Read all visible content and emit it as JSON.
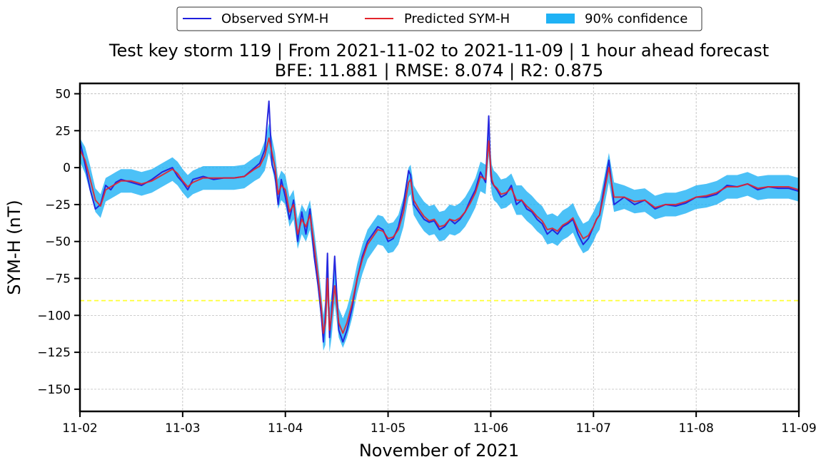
{
  "chart_data": {
    "type": "line",
    "title": "Test key storm 119 | From 2021-11-02 to 2021-11-09 | 1 hour ahead forecast",
    "subtitle": "BFE: 11.881 | RMSE: 8.074 | R2: 0.875",
    "xlabel": "November of 2021",
    "ylabel": "SYM-H (nT)",
    "xlim": [
      0,
      7
    ],
    "ylim": [
      -165,
      57
    ],
    "x_ticks": [
      0,
      1,
      2,
      3,
      4,
      5,
      6,
      7
    ],
    "x_tick_labels": [
      "11-02",
      "11-03",
      "11-04",
      "11-05",
      "11-06",
      "11-07",
      "11-08",
      "11-09"
    ],
    "y_ticks": [
      50,
      25,
      0,
      -25,
      -50,
      -75,
      -100,
      -125,
      -150
    ],
    "y_tick_labels": [
      "50",
      "25",
      "0",
      "−25",
      "−50",
      "−75",
      "−100",
      "−125",
      "−150"
    ],
    "grid": true,
    "threshold": {
      "value": -90,
      "color": "#ffff33",
      "style": "dashed"
    },
    "legend": {
      "position": "top-center",
      "entries": [
        {
          "label": "Observed SYM-H",
          "color": "#1f1fdd",
          "kind": "line"
        },
        {
          "label": "Predicted SYM-H",
          "color": "#e3242b",
          "kind": "line"
        },
        {
          "label": "90% confidence",
          "color": "#1fb2f5",
          "kind": "patch"
        }
      ]
    },
    "series": [
      {
        "name": "Observed SYM-H",
        "color": "#1f1fdd",
        "x": [
          0,
          0.05,
          0.1,
          0.15,
          0.2,
          0.25,
          0.3,
          0.35,
          0.4,
          0.5,
          0.6,
          0.7,
          0.8,
          0.9,
          0.95,
          1.0,
          1.05,
          1.1,
          1.2,
          1.3,
          1.4,
          1.5,
          1.6,
          1.7,
          1.75,
          1.8,
          1.84,
          1.87,
          1.9,
          1.93,
          1.96,
          2.0,
          2.04,
          2.08,
          2.12,
          2.16,
          2.2,
          2.24,
          2.28,
          2.32,
          2.35,
          2.37,
          2.39,
          2.41,
          2.43,
          2.45,
          2.48,
          2.52,
          2.56,
          2.6,
          2.65,
          2.7,
          2.75,
          2.8,
          2.85,
          2.9,
          2.95,
          3.0,
          3.05,
          3.1,
          3.15,
          3.2,
          3.22,
          3.25,
          3.3,
          3.35,
          3.4,
          3.45,
          3.5,
          3.55,
          3.6,
          3.65,
          3.7,
          3.75,
          3.8,
          3.85,
          3.9,
          3.95,
          3.98,
          4.0,
          4.01,
          4.03,
          4.06,
          4.1,
          4.15,
          4.2,
          4.25,
          4.3,
          4.35,
          4.4,
          4.45,
          4.5,
          4.55,
          4.6,
          4.65,
          4.7,
          4.75,
          4.8,
          4.85,
          4.9,
          4.95,
          5.0,
          5.03,
          5.06,
          5.1,
          5.15,
          5.2,
          5.3,
          5.4,
          5.5,
          5.6,
          5.7,
          5.8,
          5.9,
          6.0,
          6.1,
          6.2,
          6.3,
          6.4,
          6.5,
          6.6,
          6.7,
          6.8,
          6.9,
          7.0
        ],
        "values": [
          18,
          2,
          -15,
          -28,
          -25,
          -12,
          -15,
          -10,
          -8,
          -10,
          -12,
          -8,
          -3,
          0,
          -6,
          -10,
          -15,
          -8,
          -6,
          -8,
          -7,
          -7,
          -6,
          0,
          3,
          12,
          45,
          2,
          -5,
          -25,
          -8,
          -20,
          -35,
          -22,
          -50,
          -30,
          -45,
          -28,
          -60,
          -80,
          -100,
          -118,
          -100,
          -58,
          -115,
          -98,
          -60,
          -110,
          -118,
          -110,
          -95,
          -75,
          -60,
          -50,
          -45,
          -40,
          -42,
          -50,
          -48,
          -40,
          -25,
          -2,
          -5,
          -25,
          -30,
          -35,
          -37,
          -36,
          -42,
          -40,
          -35,
          -38,
          -35,
          -30,
          -22,
          -15,
          -3,
          -10,
          35,
          -5,
          -10,
          -12,
          -15,
          -20,
          -18,
          -12,
          -25,
          -22,
          -28,
          -30,
          -35,
          -38,
          -45,
          -42,
          -45,
          -40,
          -38,
          -35,
          -45,
          -52,
          -48,
          -40,
          -35,
          -32,
          -15,
          5,
          -25,
          -20,
          -25,
          -22,
          -28,
          -25,
          -26,
          -24,
          -20,
          -20,
          -18,
          -12,
          -13,
          -11,
          -15,
          -13,
          -14,
          -14,
          -16
        ]
      },
      {
        "name": "Predicted SYM-H",
        "color": "#e3242b",
        "x": [
          0,
          0.05,
          0.1,
          0.15,
          0.2,
          0.25,
          0.3,
          0.35,
          0.4,
          0.5,
          0.6,
          0.7,
          0.8,
          0.9,
          0.95,
          1.0,
          1.05,
          1.1,
          1.2,
          1.3,
          1.4,
          1.5,
          1.6,
          1.7,
          1.75,
          1.8,
          1.84,
          1.87,
          1.9,
          1.93,
          1.96,
          2.0,
          2.04,
          2.08,
          2.12,
          2.16,
          2.2,
          2.24,
          2.28,
          2.32,
          2.35,
          2.37,
          2.39,
          2.41,
          2.43,
          2.45,
          2.48,
          2.52,
          2.56,
          2.6,
          2.65,
          2.7,
          2.75,
          2.8,
          2.85,
          2.9,
          2.95,
          3.0,
          3.05,
          3.1,
          3.15,
          3.2,
          3.22,
          3.25,
          3.3,
          3.35,
          3.4,
          3.45,
          3.5,
          3.55,
          3.6,
          3.65,
          3.7,
          3.75,
          3.8,
          3.85,
          3.9,
          3.95,
          3.98,
          4.0,
          4.01,
          4.03,
          4.06,
          4.1,
          4.15,
          4.2,
          4.25,
          4.3,
          4.35,
          4.4,
          4.45,
          4.5,
          4.55,
          4.6,
          4.65,
          4.7,
          4.75,
          4.8,
          4.85,
          4.9,
          4.95,
          5.0,
          5.03,
          5.06,
          5.1,
          5.15,
          5.2,
          5.3,
          5.4,
          5.5,
          5.6,
          5.7,
          5.8,
          5.9,
          6.0,
          6.1,
          6.2,
          6.3,
          6.4,
          6.5,
          6.6,
          6.7,
          6.8,
          6.9,
          7.0
        ],
        "values": [
          12,
          5,
          -8,
          -22,
          -26,
          -15,
          -13,
          -11,
          -9,
          -9,
          -11,
          -9,
          -5,
          -1,
          -4,
          -9,
          -13,
          -10,
          -7,
          -7,
          -7,
          -7,
          -6,
          -1,
          1,
          8,
          20,
          10,
          0,
          -18,
          -12,
          -15,
          -30,
          -25,
          -45,
          -35,
          -40,
          -32,
          -52,
          -75,
          -95,
          -112,
          -105,
          -75,
          -110,
          -100,
          -80,
          -105,
          -112,
          -105,
          -92,
          -75,
          -62,
          -52,
          -47,
          -42,
          -43,
          -48,
          -47,
          -42,
          -30,
          -10,
          -8,
          -22,
          -28,
          -33,
          -36,
          -35,
          -40,
          -39,
          -35,
          -36,
          -34,
          -30,
          -24,
          -17,
          -6,
          -8,
          18,
          0,
          -8,
          -12,
          -14,
          -18,
          -17,
          -14,
          -22,
          -22,
          -26,
          -29,
          -33,
          -36,
          -42,
          -41,
          -43,
          -39,
          -37,
          -34,
          -42,
          -48,
          -46,
          -40,
          -35,
          -32,
          -18,
          0,
          -20,
          -20,
          -23,
          -22,
          -27,
          -25,
          -25,
          -23,
          -20,
          -19,
          -17,
          -13,
          -13,
          -11,
          -14,
          -13,
          -13,
          -13,
          -15
        ]
      },
      {
        "name": "90% confidence",
        "color": "#1fb2f5",
        "x": [
          0,
          0.05,
          0.1,
          0.15,
          0.2,
          0.25,
          0.3,
          0.35,
          0.4,
          0.5,
          0.6,
          0.7,
          0.8,
          0.9,
          0.95,
          1.0,
          1.05,
          1.1,
          1.2,
          1.3,
          1.4,
          1.5,
          1.6,
          1.7,
          1.75,
          1.8,
          1.84,
          1.87,
          1.9,
          1.93,
          1.96,
          2.0,
          2.04,
          2.08,
          2.12,
          2.16,
          2.2,
          2.24,
          2.28,
          2.32,
          2.35,
          2.37,
          2.39,
          2.41,
          2.43,
          2.45,
          2.48,
          2.52,
          2.56,
          2.6,
          2.65,
          2.7,
          2.75,
          2.8,
          2.85,
          2.9,
          2.95,
          3.0,
          3.05,
          3.1,
          3.15,
          3.2,
          3.22,
          3.25,
          3.3,
          3.35,
          3.4,
          3.45,
          3.5,
          3.55,
          3.6,
          3.65,
          3.7,
          3.75,
          3.8,
          3.85,
          3.9,
          3.95,
          3.98,
          4.0,
          4.01,
          4.03,
          4.06,
          4.1,
          4.15,
          4.2,
          4.25,
          4.3,
          4.35,
          4.4,
          4.45,
          4.5,
          4.55,
          4.6,
          4.65,
          4.7,
          4.75,
          4.8,
          4.85,
          4.9,
          4.95,
          5.0,
          5.03,
          5.06,
          5.1,
          5.15,
          5.2,
          5.3,
          5.4,
          5.5,
          5.6,
          5.7,
          5.8,
          5.9,
          6.0,
          6.1,
          6.2,
          6.3,
          6.4,
          6.5,
          6.6,
          6.7,
          6.8,
          6.9,
          7.0
        ],
        "upper": [
          20,
          14,
          1,
          -14,
          -18,
          -7,
          -5,
          -3,
          -1,
          -1,
          -3,
          -1,
          3,
          7,
          4,
          -1,
          -5,
          -2,
          1,
          1,
          1,
          1,
          2,
          7,
          9,
          18,
          30,
          20,
          10,
          -8,
          -2,
          -5,
          -20,
          -15,
          -35,
          -25,
          -30,
          -22,
          -42,
          -65,
          -85,
          -100,
          -90,
          -60,
          -95,
          -85,
          -68,
          -95,
          -102,
          -95,
          -82,
          -65,
          -52,
          -42,
          -37,
          -32,
          -33,
          -38,
          -37,
          -32,
          -20,
          0,
          2,
          -12,
          -18,
          -23,
          -26,
          -25,
          -30,
          -29,
          -25,
          -26,
          -24,
          -20,
          -14,
          -7,
          4,
          2,
          28,
          10,
          2,
          -2,
          -4,
          -8,
          -7,
          -4,
          -12,
          -12,
          -16,
          -19,
          -23,
          -26,
          -32,
          -31,
          -33,
          -29,
          -27,
          -24,
          -32,
          -38,
          -36,
          -30,
          -25,
          -22,
          -8,
          10,
          -10,
          -12,
          -15,
          -14,
          -19,
          -17,
          -17,
          -15,
          -12,
          -11,
          -9,
          -5,
          -5,
          -3,
          -6,
          -5,
          -5,
          -5,
          -7
        ],
        "lower": [
          4,
          -4,
          -17,
          -30,
          -34,
          -23,
          -21,
          -19,
          -17,
          -17,
          -19,
          -17,
          -13,
          -9,
          -12,
          -17,
          -21,
          -18,
          -15,
          -15,
          -15,
          -15,
          -14,
          -9,
          -7,
          -2,
          10,
          0,
          -10,
          -28,
          -22,
          -25,
          -40,
          -35,
          -55,
          -45,
          -50,
          -42,
          -62,
          -85,
          -105,
          -124,
          -120,
          -90,
          -125,
          -115,
          -92,
          -115,
          -122,
          -115,
          -102,
          -85,
          -72,
          -62,
          -57,
          -52,
          -53,
          -58,
          -57,
          -52,
          -40,
          -20,
          -18,
          -32,
          -38,
          -43,
          -46,
          -45,
          -50,
          -49,
          -45,
          -46,
          -44,
          -40,
          -34,
          -27,
          -16,
          -18,
          8,
          -10,
          -18,
          -22,
          -24,
          -28,
          -27,
          -24,
          -32,
          -32,
          -36,
          -39,
          -43,
          -46,
          -52,
          -51,
          -53,
          -49,
          -47,
          -44,
          -52,
          -58,
          -56,
          -50,
          -45,
          -42,
          -28,
          -10,
          -30,
          -28,
          -31,
          -30,
          -35,
          -33,
          -33,
          -31,
          -28,
          -27,
          -25,
          -21,
          -21,
          -19,
          -22,
          -21,
          -21,
          -21,
          -23
        ]
      }
    ]
  }
}
